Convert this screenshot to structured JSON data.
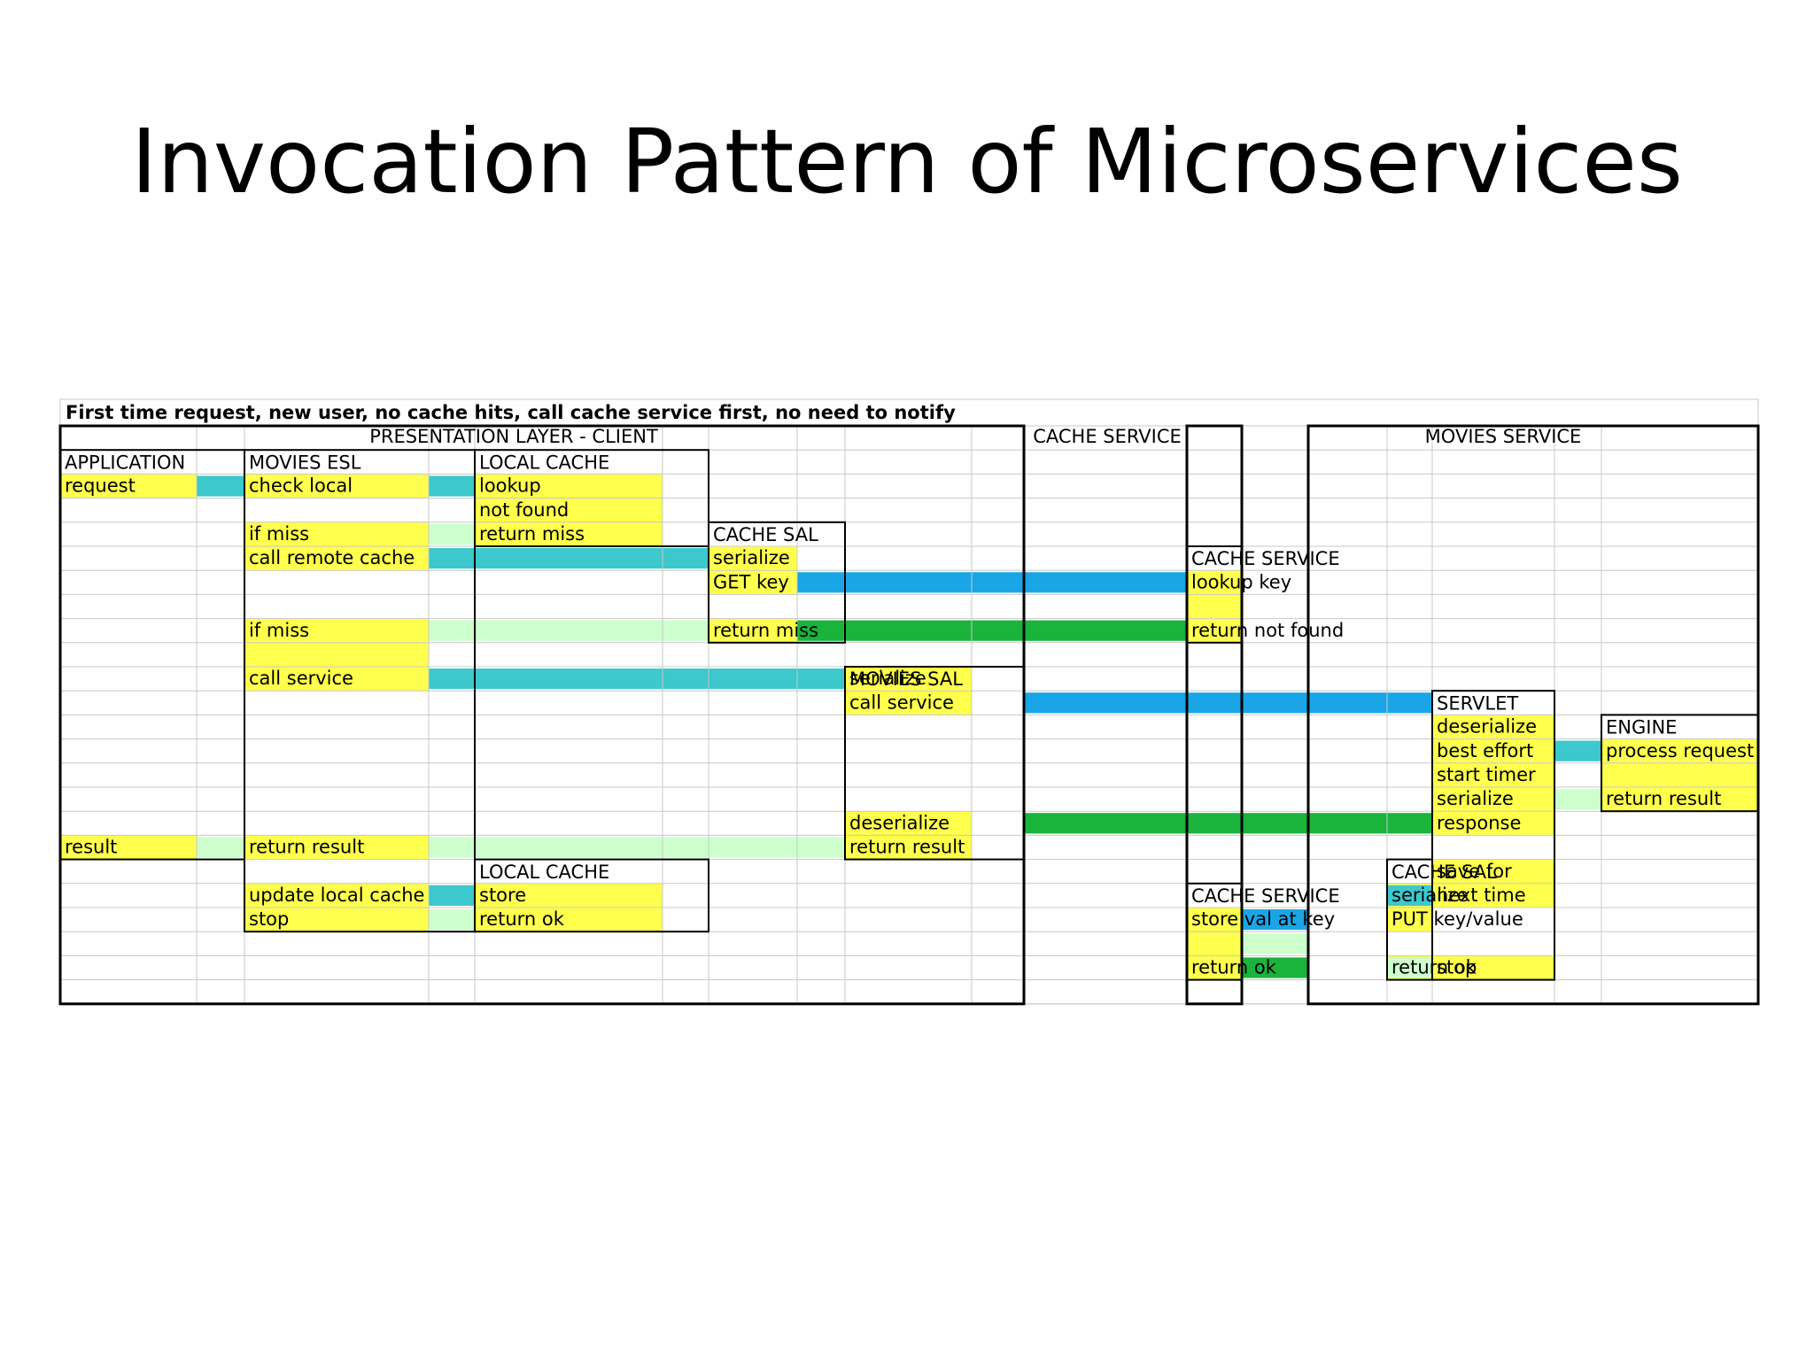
{
  "slide": {
    "title": "Invocation Pattern of Microservices"
  },
  "table": {
    "caption": "First time request, new user, no cache hits, call cache service first, no need to notify",
    "sections": [
      {
        "id": "presentation",
        "label": "PRESENTATION LAYER - CLIENT"
      },
      {
        "id": "cache",
        "label": "CACHE SERVICE"
      },
      {
        "id": "movies",
        "label": "MOVIES SERVICE"
      }
    ],
    "boxes": [
      {
        "id": "application",
        "col0": 0,
        "col1": 1,
        "row0": 2,
        "row1": 19,
        "title": "APPLICATION"
      },
      {
        "id": "movies-esl",
        "col0": 2,
        "col1": 3,
        "row0": 2,
        "row1": 22,
        "title": "MOVIES ESL"
      },
      {
        "id": "local-cache-1",
        "col0": 4,
        "col1": 5,
        "row0": 2,
        "row1": 6,
        "title": "LOCAL CACHE"
      },
      {
        "id": "cache-sal-1",
        "col0": 6,
        "col1": 7,
        "row0": 5,
        "row1": 10,
        "title": "CACHE SAL"
      },
      {
        "id": "movies-sal",
        "col0": 8,
        "col1": 9,
        "row0": 11,
        "row1": 19,
        "title": "MOVIES SAL"
      },
      {
        "id": "local-cache-2",
        "col0": 4,
        "col1": 5,
        "row0": 19,
        "row1": 22,
        "title": "LOCAL CACHE"
      },
      {
        "id": "cache-service-1",
        "col0": 11,
        "col1": 11,
        "row0": 6,
        "row1": 10,
        "title": "CACHE SERVICE"
      },
      {
        "id": "cache-service-2",
        "col0": 11,
        "col1": 11,
        "row0": 20,
        "row1": 24,
        "title": "CACHE SERVICE"
      },
      {
        "id": "servlet",
        "col0": 15,
        "col1": 15,
        "row0": 12,
        "row1": 24,
        "title": "SERVLET"
      },
      {
        "id": "engine",
        "col0": 17,
        "col1": 17,
        "row0": 13,
        "row1": 17,
        "title": "ENGINE"
      },
      {
        "id": "cache-sal-2",
        "col0": 14,
        "col1": 14,
        "row0": 19,
        "row1": 24,
        "title": "CACHE SAL"
      }
    ],
    "cells": [
      {
        "col0": 0,
        "col1": 0,
        "row": 3,
        "text": "request",
        "fill": "yellow"
      },
      {
        "col0": 0,
        "col1": 0,
        "row": 18,
        "text": "result",
        "fill": "yellow"
      },
      {
        "col0": 2,
        "col1": 2,
        "row": 3,
        "text": "check local",
        "fill": "yellow"
      },
      {
        "col0": 2,
        "col1": 2,
        "row": 5,
        "text": "if miss",
        "fill": "yellow"
      },
      {
        "col0": 2,
        "col1": 2,
        "row": 6,
        "text": "call remote cache",
        "fill": "yellow"
      },
      {
        "col0": 2,
        "col1": 2,
        "row": 9,
        "text": "if miss",
        "fill": "yellow"
      },
      {
        "col0": 2,
        "col1": 2,
        "row": 10,
        "text": "",
        "fill": "yellow"
      },
      {
        "col0": 2,
        "col1": 2,
        "row": 11,
        "text": "call service",
        "fill": "yellow"
      },
      {
        "col0": 2,
        "col1": 2,
        "row": 18,
        "text": "return result",
        "fill": "yellow"
      },
      {
        "col0": 2,
        "col1": 2,
        "row": 20,
        "text": "update local cache",
        "fill": "yellow"
      },
      {
        "col0": 2,
        "col1": 2,
        "row": 21,
        "text": "stop",
        "fill": "yellow"
      },
      {
        "col0": 4,
        "col1": 4,
        "row": 3,
        "text": "lookup",
        "fill": "yellow"
      },
      {
        "col0": 4,
        "col1": 4,
        "row": 4,
        "text": "not found",
        "fill": "yellow"
      },
      {
        "col0": 4,
        "col1": 4,
        "row": 5,
        "text": "return miss",
        "fill": "yellow"
      },
      {
        "col0": 6,
        "col1": 6,
        "row": 6,
        "text": "serialize",
        "fill": "yellow"
      },
      {
        "col0": 6,
        "col1": 6,
        "row": 7,
        "text": "GET key",
        "fill": "yellow"
      },
      {
        "col0": 6,
        "col1": 6,
        "row": 9,
        "text": "return miss",
        "fill": "yellow"
      },
      {
        "col0": 8,
        "col1": 8,
        "row": 11,
        "text": "serialize",
        "fill": "yellow"
      },
      {
        "col0": 8,
        "col1": 8,
        "row": 12,
        "text": "call service",
        "fill": "yellow"
      },
      {
        "col0": 8,
        "col1": 8,
        "row": 17,
        "text": "deserialize",
        "fill": "yellow"
      },
      {
        "col0": 8,
        "col1": 8,
        "row": 18,
        "text": "return result",
        "fill": "yellow"
      },
      {
        "col0": 4,
        "col1": 4,
        "row": 20,
        "text": "store",
        "fill": "yellow"
      },
      {
        "col0": 4,
        "col1": 4,
        "row": 21,
        "text": "return ok",
        "fill": "yellow"
      },
      {
        "col0": 11,
        "col1": 11,
        "row": 7,
        "text": "lookup key",
        "fill": "yellow"
      },
      {
        "col0": 11,
        "col1": 11,
        "row": 8,
        "text": "",
        "fill": "yellow"
      },
      {
        "col0": 11,
        "col1": 11,
        "row": 9,
        "text": "return not found",
        "fill": "yellow"
      },
      {
        "col0": 11,
        "col1": 11,
        "row": 21,
        "text": "store val at key",
        "fill": "yellow"
      },
      {
        "col0": 11,
        "col1": 11,
        "row": 22,
        "text": "",
        "fill": "yellow"
      },
      {
        "col0": 11,
        "col1": 11,
        "row": 23,
        "text": "return ok",
        "fill": "yellow"
      },
      {
        "col0": 15,
        "col1": 15,
        "row": 13,
        "text": "deserialize",
        "fill": "yellow"
      },
      {
        "col0": 15,
        "col1": 15,
        "row": 14,
        "text": "best effort",
        "fill": "yellow"
      },
      {
        "col0": 15,
        "col1": 15,
        "row": 15,
        "text": "start timer",
        "fill": "yellow"
      },
      {
        "col0": 15,
        "col1": 15,
        "row": 16,
        "text": "serialize",
        "fill": "yellow"
      },
      {
        "col0": 15,
        "col1": 15,
        "row": 17,
        "text": "response",
        "fill": "yellow"
      },
      {
        "col0": 15,
        "col1": 15,
        "row": 19,
        "text": "save for",
        "fill": "yellow"
      },
      {
        "col0": 15,
        "col1": 15,
        "row": 20,
        "text": "next time",
        "fill": "yellow"
      },
      {
        "col0": 15,
        "col1": 15,
        "row": 23,
        "text": "stop",
        "fill": "yellow"
      },
      {
        "col0": 17,
        "col1": 17,
        "row": 14,
        "text": "process request",
        "fill": "yellow"
      },
      {
        "col0": 17,
        "col1": 17,
        "row": 15,
        "text": "",
        "fill": "yellow"
      },
      {
        "col0": 17,
        "col1": 17,
        "row": 16,
        "text": "return result",
        "fill": "yellow"
      },
      {
        "col0": 14,
        "col1": 14,
        "row": 20,
        "text": "serialize",
        "fill": "yellow"
      },
      {
        "col0": 14,
        "col1": 14,
        "row": 21,
        "text": "PUT key/value",
        "fill": "yellow"
      },
      {
        "col0": 14,
        "col1": 14,
        "row": 23,
        "text": "return ok",
        "fill": "yellow"
      }
    ],
    "arrows": [
      {
        "col0": 1,
        "col1": 1,
        "row": 3,
        "kind": "teal"
      },
      {
        "col0": 3,
        "col1": 3,
        "row": 3,
        "kind": "teal"
      },
      {
        "col0": 3,
        "col1": 3,
        "row": 5,
        "kind": "mint"
      },
      {
        "col0": 3,
        "col1": 5,
        "row": 6,
        "kind": "teal"
      },
      {
        "col0": 7,
        "col1": 10,
        "row": 7,
        "kind": "blue"
      },
      {
        "col0": 3,
        "col1": 5,
        "row": 9,
        "kind": "mint"
      },
      {
        "col0": 7,
        "col1": 10,
        "row": 9,
        "kind": "green"
      },
      {
        "col0": 3,
        "col1": 7,
        "row": 11,
        "kind": "teal"
      },
      {
        "col0": 10,
        "col1": 14,
        "row": 12,
        "kind": "blue"
      },
      {
        "col0": 16,
        "col1": 16,
        "row": 14,
        "kind": "teal"
      },
      {
        "col0": 16,
        "col1": 16,
        "row": 16,
        "kind": "mint"
      },
      {
        "col0": 10,
        "col1": 14,
        "row": 17,
        "kind": "green"
      },
      {
        "col0": 1,
        "col1": 1,
        "row": 18,
        "kind": "mint"
      },
      {
        "col0": 3,
        "col1": 7,
        "row": 18,
        "kind": "mint"
      },
      {
        "col0": 3,
        "col1": 3,
        "row": 20,
        "kind": "teal"
      },
      {
        "col0": 3,
        "col1": 3,
        "row": 21,
        "kind": "mint"
      },
      {
        "col0": 15.0,
        "col1": 15.0,
        "row": 20,
        "kind": "teal",
        "gap": true
      },
      {
        "col0": 12,
        "col1": 12,
        "row": 21,
        "kind": "blue"
      },
      {
        "col0": 12,
        "col1": 12,
        "row": 22,
        "kind": "mint"
      },
      {
        "col0": 12,
        "col1": 12,
        "row": 23,
        "kind": "green"
      },
      {
        "col0": 14.5,
        "col1": 14.5,
        "row": 23,
        "kind": "mint",
        "gap": true
      }
    ]
  },
  "colors": {
    "yellow": "#ffff4d",
    "teal": "#3cc8cc",
    "blue": "#1aa6e6",
    "green": "#1ab33c",
    "mint": "#ccffcc",
    "grid": "#c8c8c8",
    "border": "#000000"
  }
}
